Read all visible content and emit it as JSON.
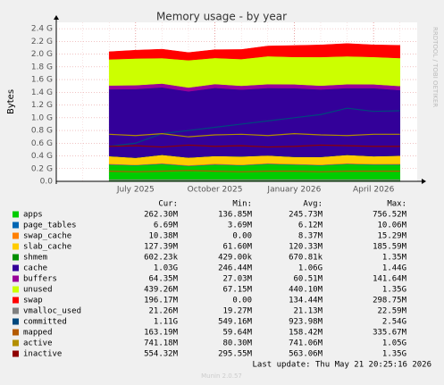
{
  "chart_data": {
    "type": "area",
    "title": "Memory usage - by year",
    "y_label": "Bytes",
    "side_text": "RRDTOOL / TOBI OETIKER",
    "last_update": "Last update: Thu May 21 20:25:16 2026",
    "version": "Munin 2.0.57",
    "grid": true,
    "x": [
      "2025-06",
      "2025-07",
      "2025-08",
      "2025-09",
      "2025-10",
      "2025-11",
      "2025-12",
      "2026-01",
      "2026-02",
      "2026-03",
      "2026-04",
      "2026-05"
    ],
    "xlim": [
      "2025-04",
      "2026-05"
    ],
    "xticks": [
      {
        "value": "2025-07",
        "label": "July 2025"
      },
      {
        "value": "2025-10",
        "label": "October 2025"
      },
      {
        "value": "2026-01",
        "label": "January 2026"
      },
      {
        "value": "2026-04",
        "label": "April 2026"
      }
    ],
    "ylim": [
      0,
      2.5
    ],
    "yticks": [
      {
        "value": 0,
        "label": "0.0"
      },
      {
        "value": 0.2,
        "label": "0.2 G"
      },
      {
        "value": 0.4,
        "label": "0.4 G"
      },
      {
        "value": 0.6,
        "label": "0.6 G"
      },
      {
        "value": 0.8,
        "label": "0.8 G"
      },
      {
        "value": 1.0,
        "label": "1.0 G"
      },
      {
        "value": 1.2,
        "label": "1.2 G"
      },
      {
        "value": 1.4,
        "label": "1.4 G"
      },
      {
        "value": 1.6,
        "label": "1.6 G"
      },
      {
        "value": 1.8,
        "label": "1.8 G"
      },
      {
        "value": 2.0,
        "label": "2.0 G"
      },
      {
        "value": 2.2,
        "label": "2.2 G"
      },
      {
        "value": 2.4,
        "label": "2.4 G"
      }
    ],
    "legend_columns": [
      "Cur:",
      "Min:",
      "Avg:",
      "Max:"
    ],
    "series": [
      {
        "name": "apps",
        "color": "#00cc00",
        "draw": "stack",
        "values": [
          0.26,
          0.25,
          0.27,
          0.24,
          0.26,
          0.25,
          0.27,
          0.26,
          0.25,
          0.27,
          0.26,
          0.26
        ],
        "stats": [
          "262.30M",
          "136.85M",
          "245.73M",
          "756.52M"
        ]
      },
      {
        "name": "page_tables",
        "color": "#0066b3",
        "draw": "stack",
        "values": [
          0.007,
          0.006,
          0.007,
          0.006,
          0.007,
          0.006,
          0.007,
          0.006,
          0.007,
          0.006,
          0.007,
          0.007
        ],
        "stats": [
          "6.69M",
          "3.69M",
          "6.12M",
          "10.06M"
        ]
      },
      {
        "name": "swap_cache",
        "color": "#ff8000",
        "draw": "stack",
        "values": [
          0.01,
          0.005,
          0.01,
          0.008,
          0.012,
          0.006,
          0.01,
          0.009,
          0.007,
          0.01,
          0.008,
          0.01
        ],
        "stats": [
          "10.38M",
          "0.00",
          "8.37M",
          "15.29M"
        ]
      },
      {
        "name": "slab_cache",
        "color": "#ffcc00",
        "draw": "stack",
        "values": [
          0.12,
          0.11,
          0.13,
          0.12,
          0.12,
          0.13,
          0.12,
          0.11,
          0.12,
          0.13,
          0.12,
          0.127
        ],
        "stats": [
          "127.39M",
          "61.60M",
          "120.33M",
          "185.59M"
        ]
      },
      {
        "name": "shmem",
        "color": "#008f00",
        "draw": "stack",
        "values": [
          0.0007,
          0.0007,
          0.0007,
          0.0007,
          0.0007,
          0.0007,
          0.0007,
          0.0007,
          0.0007,
          0.0007,
          0.0007,
          0.0006
        ],
        "stats": [
          "602.23k",
          "429.00k",
          "670.81k",
          "1.35M"
        ]
      },
      {
        "name": "cache",
        "color": "#330099",
        "draw": "stack",
        "values": [
          1.05,
          1.08,
          1.06,
          1.04,
          1.07,
          1.05,
          1.06,
          1.08,
          1.06,
          1.05,
          1.07,
          1.03
        ],
        "stats": [
          "1.03G",
          "246.44M",
          "1.06G",
          "1.44G"
        ]
      },
      {
        "name": "buffers",
        "color": "#990099",
        "draw": "stack",
        "values": [
          0.06,
          0.06,
          0.06,
          0.06,
          0.06,
          0.06,
          0.06,
          0.06,
          0.06,
          0.06,
          0.06,
          0.064
        ],
        "stats": [
          "64.35M",
          "27.03M",
          "60.51M",
          "141.64M"
        ]
      },
      {
        "name": "unused",
        "color": "#ccff00",
        "draw": "stack",
        "values": [
          0.41,
          0.42,
          0.4,
          0.43,
          0.41,
          0.42,
          0.44,
          0.43,
          0.45,
          0.44,
          0.43,
          0.44
        ],
        "stats": [
          "439.26M",
          "67.15M",
          "440.10M",
          "1.35G"
        ]
      },
      {
        "name": "swap",
        "color": "#ff0000",
        "draw": "stack",
        "values": [
          0.12,
          0.13,
          0.14,
          0.12,
          0.13,
          0.15,
          0.16,
          0.18,
          0.19,
          0.2,
          0.19,
          0.2
        ],
        "stats": [
          "196.17M",
          "0.00",
          "134.44M",
          "298.75M"
        ]
      },
      {
        "name": "vmalloc_used",
        "color": "#808080",
        "draw": "line",
        "values": [
          0.021,
          0.021,
          0.021,
          0.021,
          0.021,
          0.021,
          0.021,
          0.021,
          0.021,
          0.021,
          0.021,
          0.021
        ],
        "stats": [
          "21.26M",
          "19.27M",
          "21.13M",
          "22.59M"
        ]
      },
      {
        "name": "committed",
        "color": "#00487d",
        "draw": "line",
        "values": [
          0.55,
          0.6,
          0.75,
          0.8,
          0.85,
          0.9,
          0.95,
          1.0,
          1.05,
          1.15,
          1.1,
          1.11
        ],
        "stats": [
          "1.11G",
          "549.16M",
          "923.98M",
          "2.54G"
        ]
      },
      {
        "name": "mapped",
        "color": "#b35a00",
        "draw": "line",
        "values": [
          0.16,
          0.15,
          0.16,
          0.17,
          0.16,
          0.15,
          0.16,
          0.16,
          0.15,
          0.16,
          0.16,
          0.16
        ],
        "stats": [
          "163.19M",
          "59.64M",
          "158.42M",
          "335.67M"
        ]
      },
      {
        "name": "active",
        "color": "#b38f00",
        "draw": "line",
        "values": [
          0.74,
          0.72,
          0.75,
          0.7,
          0.73,
          0.74,
          0.72,
          0.75,
          0.73,
          0.72,
          0.74,
          0.74
        ],
        "stats": [
          "741.18M",
          "80.30M",
          "741.06M",
          "1.05G"
        ]
      },
      {
        "name": "inactive",
        "color": "#8f0000",
        "draw": "line",
        "values": [
          0.55,
          0.56,
          0.54,
          0.57,
          0.55,
          0.56,
          0.54,
          0.55,
          0.57,
          0.56,
          0.55,
          0.55
        ],
        "stats": [
          "554.32M",
          "295.55M",
          "563.06M",
          "1.35G"
        ]
      }
    ]
  }
}
